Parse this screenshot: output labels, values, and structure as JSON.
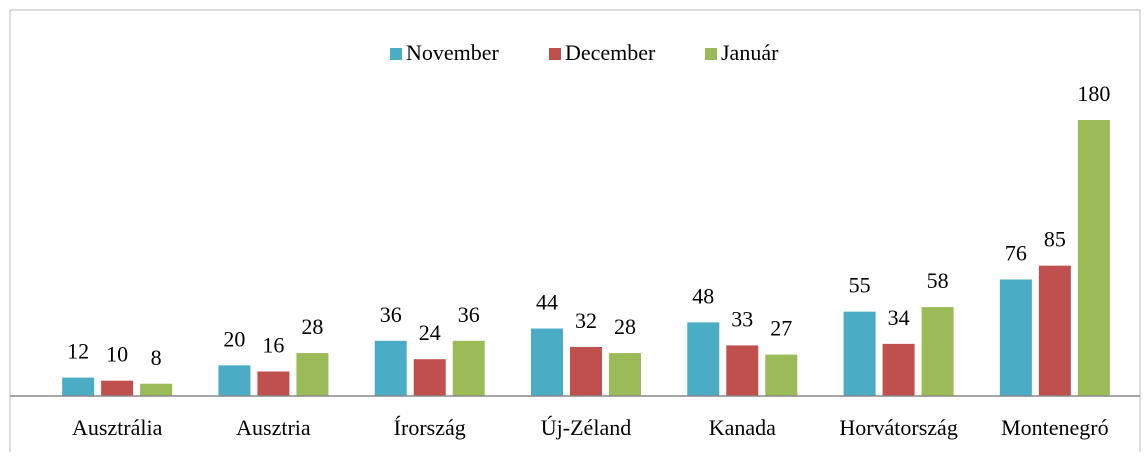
{
  "chart_data": {
    "type": "bar",
    "categories": [
      "Ausztrália",
      "Ausztria",
      "Írország",
      "Új-Zéland",
      "Kanada",
      "Horvátország",
      "Montenegró"
    ],
    "series": [
      {
        "name": "November",
        "color": "#4bacc6",
        "values": [
          12,
          20,
          36,
          44,
          48,
          55,
          76
        ]
      },
      {
        "name": "December",
        "color": "#c0504d",
        "values": [
          10,
          16,
          24,
          32,
          33,
          34,
          85
        ]
      },
      {
        "name": "Január",
        "color": "#9bbb59",
        "values": [
          8,
          28,
          36,
          28,
          27,
          58,
          180
        ]
      }
    ],
    "legend": "top"
  }
}
